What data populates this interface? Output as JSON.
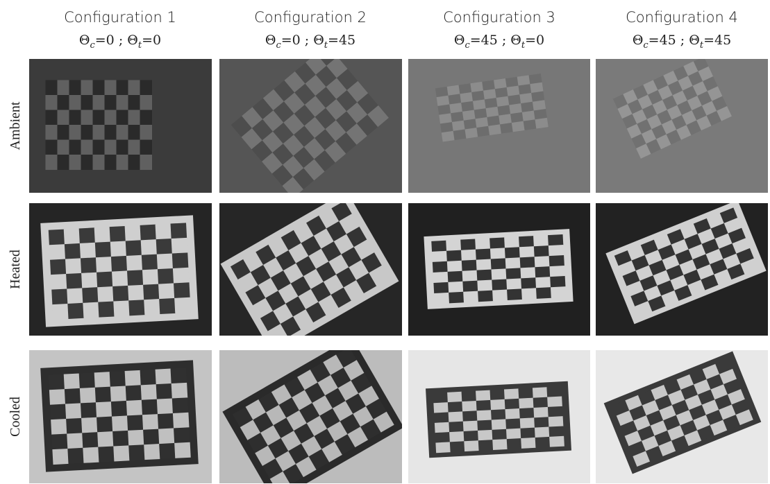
{
  "columns": [
    {
      "title": "Configuration 1",
      "subtitle": [
        {
          "text": "Θ"
        },
        {
          "sub": "c"
        },
        {
          "text": "=0 ; Θ"
        },
        {
          "sub": "t"
        },
        {
          "text": "=0"
        }
      ]
    },
    {
      "title": "Configuration 2",
      "subtitle": [
        {
          "text": "Θ"
        },
        {
          "sub": "c"
        },
        {
          "text": "=0 ; Θ"
        },
        {
          "sub": "t"
        },
        {
          "text": "=45"
        }
      ]
    },
    {
      "title": "Configuration 3",
      "subtitle": [
        {
          "text": "Θ"
        },
        {
          "sub": "c"
        },
        {
          "text": "=45 ; Θ"
        },
        {
          "sub": "t"
        },
        {
          "text": "=0"
        }
      ]
    },
    {
      "title": "Configuration 4",
      "subtitle": [
        {
          "text": "Θ"
        },
        {
          "sub": "c"
        },
        {
          "text": "=45 ; Θ"
        },
        {
          "sub": "t"
        },
        {
          "text": "=45"
        }
      ]
    }
  ],
  "rows": [
    {
      "label": "Ambient"
    },
    {
      "label": "Heated"
    },
    {
      "label": "Cooled"
    }
  ]
}
